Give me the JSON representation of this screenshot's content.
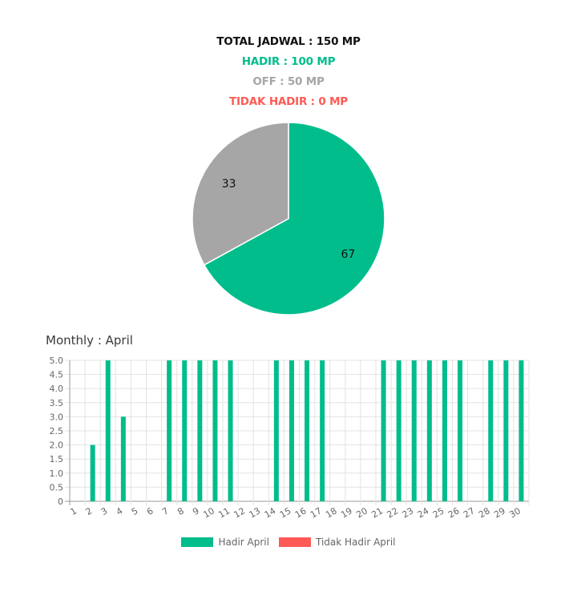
{
  "summary": {
    "total": "TOTAL JADWAL : 150 MP",
    "hadir": "HADIR : 100 MP",
    "off": "OFF : 50 MP",
    "tidak_hadir": "TIDAK HADIR : 0 MP"
  },
  "colors": {
    "hadir": "#00bd8b",
    "off": "#a6a6a6",
    "tidak_hadir": "#ff5a55"
  },
  "chart_data": [
    {
      "type": "pie",
      "labels": [
        "",
        ""
      ],
      "values": [
        67,
        33
      ],
      "data_labels": [
        "67",
        "33"
      ],
      "colors": [
        "#00bd8b",
        "#a6a6a6"
      ]
    },
    {
      "type": "bar",
      "title": "Monthly : April",
      "categories": [
        "1",
        "2",
        "3",
        "4",
        "5",
        "6",
        "7",
        "8",
        "9",
        "10",
        "11",
        "12",
        "13",
        "14",
        "15",
        "16",
        "17",
        "18",
        "19",
        "20",
        "21",
        "22",
        "23",
        "24",
        "25",
        "26",
        "27",
        "28",
        "29",
        "30"
      ],
      "series": [
        {
          "name": "Hadir April",
          "color": "#00bd8b",
          "values": [
            0,
            2,
            5,
            3,
            0,
            0,
            5,
            5,
            5,
            5,
            5,
            0,
            0,
            5,
            5,
            5,
            5,
            0,
            0,
            0,
            5,
            5,
            5,
            5,
            5,
            5,
            0,
            5,
            5,
            5
          ]
        },
        {
          "name": "Tidak Hadir April",
          "color": "#ff5a55",
          "values": [
            0,
            0,
            0,
            0,
            0,
            0,
            0,
            0,
            0,
            0,
            0,
            0,
            0,
            0,
            0,
            0,
            0,
            0,
            0,
            0,
            0,
            0,
            0,
            0,
            0,
            0,
            0,
            0,
            0,
            0
          ]
        }
      ],
      "yticks": [
        "0",
        "0.5",
        "1.0",
        "1.5",
        "2.0",
        "2.5",
        "3.0",
        "3.5",
        "4.0",
        "4.5",
        "5.0"
      ],
      "ylim": [
        0,
        5
      ],
      "grid": true,
      "legend_position": "bottom"
    }
  ]
}
